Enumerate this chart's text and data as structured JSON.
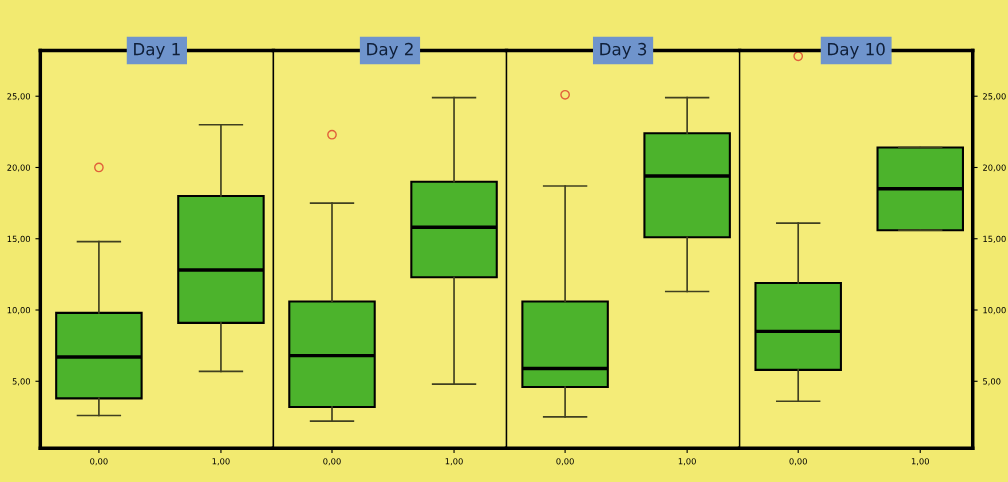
{
  "chart_data": [
    {
      "type": "box",
      "title": "Day 1",
      "categories": [
        "0,00",
        "1,00"
      ],
      "color": "#4cb32c",
      "ylim": [
        0.3,
        28.2
      ],
      "yticks": [
        {
          "value": 5,
          "label": "5,00"
        },
        {
          "value": 10,
          "label": "10,00"
        },
        {
          "value": 15,
          "label": "15,00"
        },
        {
          "value": 20,
          "label": "20,00"
        },
        {
          "value": 25,
          "label": "25,00"
        }
      ],
      "boxes": [
        {
          "low": 2.6,
          "q1": 3.8,
          "median": 6.7,
          "q3": 9.8,
          "high": 14.8,
          "outliers": [
            20.0
          ]
        },
        {
          "low": 5.7,
          "q1": 9.1,
          "median": 12.8,
          "q3": 18.0,
          "high": 23.0
        }
      ]
    },
    {
      "type": "box",
      "title": "Day 2",
      "categories": [
        "0,00",
        "1,00"
      ],
      "color": "#4cb32c",
      "ylim": [
        0.3,
        28.2
      ],
      "tick_labels": "x",
      "boxes": [
        {
          "low": 2.2,
          "q1": 3.2,
          "median": 6.8,
          "q3": 10.6,
          "high": 17.5,
          "outliers": [
            22.3
          ]
        },
        {
          "low": 4.8,
          "q1": 12.3,
          "median": 15.8,
          "q3": 19.0,
          "high": 24.9
        }
      ]
    },
    {
      "type": "box",
      "title": "Day 3",
      "categories": [
        "0,00",
        "1,00"
      ],
      "color": "#4cb32c",
      "ylim": [
        0.3,
        28.2
      ],
      "tick_labels": "x",
      "boxes": [
        {
          "low": 2.5,
          "q1": 4.6,
          "median": 5.9,
          "q3": 10.6,
          "high": 18.7,
          "outliers": [
            25.1
          ]
        },
        {
          "low": 11.3,
          "q1": 15.1,
          "median": 19.4,
          "q3": 22.4,
          "high": 24.9
        }
      ]
    },
    {
      "type": "box",
      "title": "Day 10",
      "categories": [
        "0,00",
        "1,00"
      ],
      "color": "#4cb32c",
      "ylim": [
        0.3,
        28.2
      ],
      "yticks": [
        {
          "value": 5,
          "label": "5,00"
        },
        {
          "value": 10,
          "label": "10,00"
        },
        {
          "value": 15,
          "label": "15,00"
        },
        {
          "value": 20,
          "label": "20,00"
        },
        {
          "value": 25,
          "label": "25,00"
        }
      ],
      "boxes": [
        {
          "low": 3.6,
          "q1": 5.8,
          "median": 8.5,
          "q3": 11.9,
          "high": 16.1,
          "outliers": [
            27.8
          ]
        },
        {
          "low": 15.6,
          "q1": 15.6,
          "median": 18.5,
          "q3": 21.4,
          "high": 21.4
        }
      ]
    }
  ]
}
